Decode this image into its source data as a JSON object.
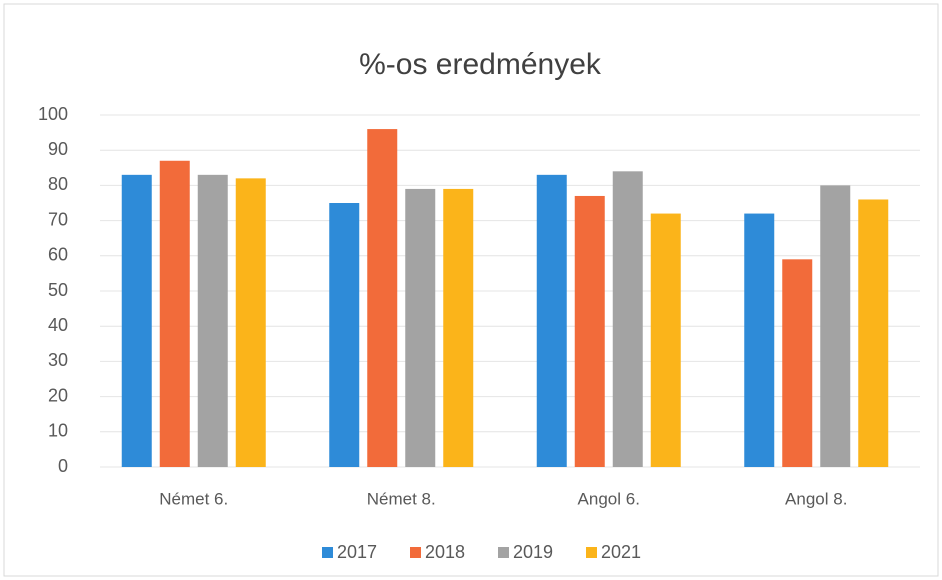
{
  "chart_data": {
    "type": "bar",
    "title": "%-os eredmények",
    "categories": [
      "Német 6.",
      "Német 8.",
      "Angol 6.",
      "Angol 8."
    ],
    "series": [
      {
        "name": "2017",
        "color": "#2e8bd8",
        "values": [
          83,
          75,
          83,
          72
        ]
      },
      {
        "name": "2018",
        "color": "#f26b3a",
        "values": [
          87,
          96,
          77,
          59
        ]
      },
      {
        "name": "2019",
        "color": "#a3a3a3",
        "values": [
          83,
          79,
          84,
          80
        ]
      },
      {
        "name": "2021",
        "color": "#fbb41a",
        "values": [
          82,
          79,
          72,
          76
        ]
      }
    ],
    "ylim": [
      0,
      100
    ],
    "yticks": [
      0,
      10,
      20,
      30,
      40,
      50,
      60,
      70,
      80,
      90,
      100
    ],
    "grid": true,
    "legend": "bottom"
  }
}
